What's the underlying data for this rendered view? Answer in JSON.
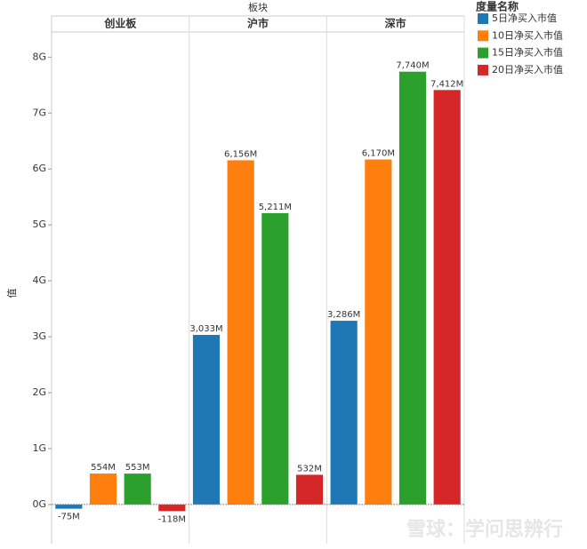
{
  "chart_data": {
    "type": "bar",
    "column_header": "板块",
    "categories": [
      "创业板",
      "沪市",
      "深市"
    ],
    "y_label": "值",
    "legend_title": "度量名称",
    "legend_position": "right",
    "ylim": [
      -700000000,
      8450000000
    ],
    "yticks": [
      {
        "value": 0,
        "label": "0G"
      },
      {
        "value": 1000000000,
        "label": "1G"
      },
      {
        "value": 2000000000,
        "label": "2G"
      },
      {
        "value": 3000000000,
        "label": "3G"
      },
      {
        "value": 4000000000,
        "label": "4G"
      },
      {
        "value": 5000000000,
        "label": "5G"
      },
      {
        "value": 6000000000,
        "label": "6G"
      },
      {
        "value": 7000000000,
        "label": "7G"
      },
      {
        "value": 8000000000,
        "label": "8G"
      }
    ],
    "grid": false,
    "series": [
      {
        "name": "5日净买入市值",
        "color": "#1f77b4",
        "values": [
          -75000000,
          3033000000,
          3286000000
        ],
        "value_labels": [
          "-75M",
          "3,033M",
          "3,286M"
        ]
      },
      {
        "name": "10日净买入市值",
        "color": "#ff7f0e",
        "values": [
          554000000,
          6156000000,
          6170000000
        ],
        "value_labels": [
          "554M",
          "6,156M",
          "6,170M"
        ]
      },
      {
        "name": "15日净买入市值",
        "color": "#2ca02c",
        "values": [
          553000000,
          5211000000,
          7740000000
        ],
        "value_labels": [
          "553M",
          "5,211M",
          "7,740M"
        ]
      },
      {
        "name": "20日净买入市值",
        "color": "#d62728",
        "values": [
          -118000000,
          532000000,
          7412000000
        ],
        "value_labels": [
          "-118M",
          "532M",
          "7,412M"
        ]
      }
    ],
    "watermark": "雪球：学问思辨行"
  }
}
